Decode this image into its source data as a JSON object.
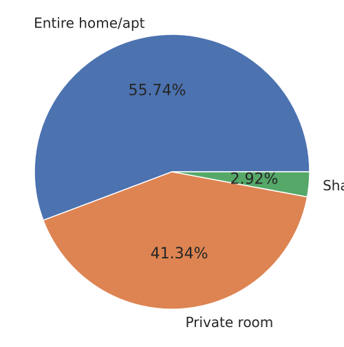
{
  "chart_data": {
    "type": "pie",
    "slices": [
      {
        "label": "Entire home/apt",
        "value": 55.74,
        "value_label": "55.74%",
        "color": "#4C72B0"
      },
      {
        "label": "Private room",
        "value": 41.34,
        "value_label": "41.34%",
        "color": "#DD8452"
      },
      {
        "label": "Shared room",
        "value": 2.92,
        "value_label": "2.92%",
        "color": "#55A868"
      }
    ],
    "start_angle": "0 degrees (3 o'clock)",
    "direction": "counter-clockwise",
    "slice_edge_color": "#ffffff",
    "legend": "none"
  }
}
